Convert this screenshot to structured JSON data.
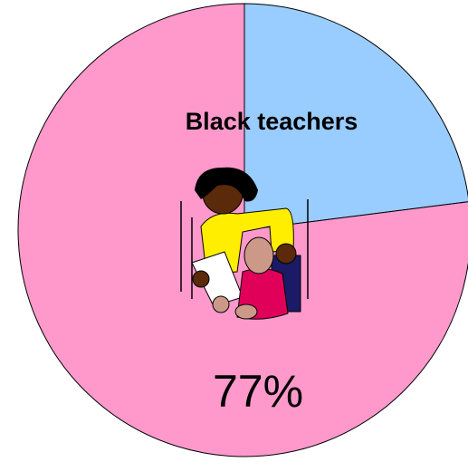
{
  "chart_data": {
    "type": "pie",
    "title": "Black teachers",
    "values": [
      23,
      77
    ],
    "value_labels": [
      null,
      "77%"
    ],
    "colors": [
      "#99ccff",
      "#ff99cc"
    ]
  }
}
